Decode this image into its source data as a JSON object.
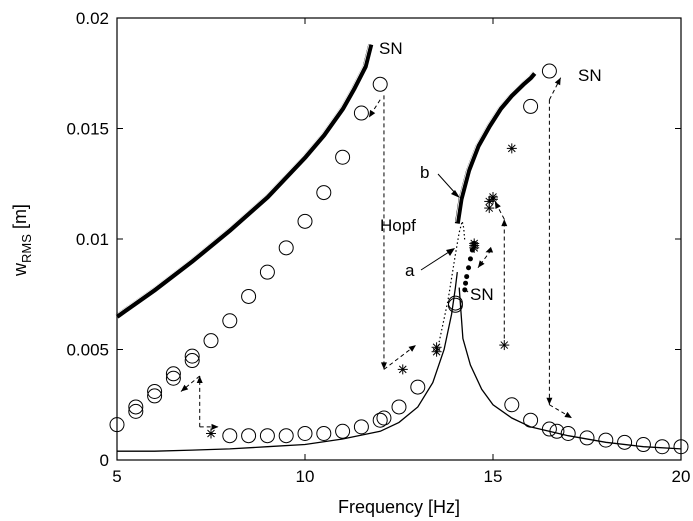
{
  "chart_data": {
    "type": "line",
    "xlabel": "Frequency [Hz]",
    "ylabel_main": "w",
    "ylabel_sub": "RMS",
    "ylabel_unit": " [m]",
    "xlim": [
      5,
      20
    ],
    "ylim": [
      0,
      0.02
    ],
    "x_ticks": [
      "5",
      "10",
      "15",
      "20"
    ],
    "y_ticks": [
      "0",
      "0.005",
      "0.01",
      "0.015",
      "0.02"
    ],
    "x_tick_values": [
      5,
      10,
      15,
      20
    ],
    "y_tick_values": [
      0,
      0.005,
      0.01,
      0.015,
      0.02
    ],
    "grid": false,
    "annotations": {
      "sn1": "SN",
      "sn2": "SN",
      "sn3": "SN",
      "hopf": "Hopf",
      "a": "a",
      "b": "b"
    },
    "series": [
      {
        "style": "thick-black",
        "x": [
          5,
          6,
          7,
          8,
          9,
          10,
          10.5,
          11,
          11.3,
          11.6,
          11.75
        ],
        "y": [
          0.0065,
          0.0077,
          0.009,
          0.0104,
          0.0119,
          0.0137,
          0.0147,
          0.0159,
          0.0168,
          0.0178,
          0.0188
        ]
      },
      {
        "style": "thick-black",
        "x": [
          14.05,
          14.15,
          14.35,
          14.6,
          14.9,
          15.2,
          15.5,
          15.8,
          16.0,
          16.1
        ],
        "y": [
          0.0107,
          0.0118,
          0.0131,
          0.0142,
          0.0151,
          0.0159,
          0.0165,
          0.017,
          0.0173,
          0.0175
        ]
      },
      {
        "style": "thin-black",
        "x": [
          5,
          6,
          7,
          8,
          9,
          10,
          11,
          12,
          12.5,
          13,
          13.4,
          13.7,
          13.9,
          14.0,
          14.05
        ],
        "y": [
          0.0004,
          0.0004,
          0.00045,
          0.0005,
          0.0006,
          0.0007,
          0.00095,
          0.0013,
          0.0017,
          0.0024,
          0.0035,
          0.005,
          0.0066,
          0.0078,
          0.0085
        ]
      },
      {
        "style": "dotted",
        "x": [
          13.5,
          13.8,
          14.0,
          14.1,
          14.18,
          14.22,
          14.25
        ],
        "y": [
          0.0048,
          0.0072,
          0.0093,
          0.0103,
          0.0108,
          0.0105,
          0.0099
        ]
      },
      {
        "style": "thin-black",
        "x": [
          14.1,
          14.2,
          14.4,
          14.7,
          15,
          15.5,
          16,
          17,
          18,
          19,
          20
        ],
        "y": [
          0.0078,
          0.0055,
          0.0043,
          0.0032,
          0.0025,
          0.0019,
          0.0015,
          0.0011,
          0.0008,
          0.0006,
          0.0005
        ]
      },
      {
        "style": "dots",
        "x": [
          14.5,
          14.45,
          14.4,
          14.35,
          14.3,
          14.27,
          14.25
        ],
        "y": [
          0.0098,
          0.0095,
          0.0091,
          0.0087,
          0.0083,
          0.008,
          0.0077
        ]
      },
      {
        "style": "circle",
        "x": [
          5,
          5.5,
          5.5,
          6,
          6,
          6.5,
          6.5,
          7,
          7,
          7.5,
          8,
          8.5,
          9,
          9.5,
          10,
          10.5,
          11,
          11.5,
          12
        ],
        "y": [
          0.0016,
          0.0024,
          0.0022,
          0.0031,
          0.0029,
          0.0039,
          0.0037,
          0.0047,
          0.0045,
          0.0054,
          0.0063,
          0.0074,
          0.0085,
          0.0096,
          0.0108,
          0.0121,
          0.0137,
          0.0157,
          0.017
        ]
      },
      {
        "style": "circle",
        "x": [
          8,
          8.5,
          9,
          9.5,
          10,
          10.5,
          11,
          11.5,
          12,
          12.1,
          12.5,
          13,
          14,
          14
        ],
        "y": [
          0.0011,
          0.0011,
          0.0011,
          0.0011,
          0.0012,
          0.0012,
          0.0013,
          0.0015,
          0.0018,
          0.0019,
          0.0024,
          0.0033,
          0.007,
          0.0071
        ]
      },
      {
        "style": "circle",
        "x": [
          15.5,
          16,
          16.5,
          16.7,
          17,
          17.5,
          18,
          18.5,
          19,
          19.5,
          20,
          16,
          16.5
        ],
        "y": [
          0.0025,
          0.0018,
          0.0014,
          0.0013,
          0.0012,
          0.001,
          0.0009,
          0.0008,
          0.0007,
          0.0006,
          0.0006,
          0.016,
          0.0176
        ]
      },
      {
        "style": "star",
        "x": [
          7.5,
          12.6,
          13.5,
          13.5,
          14.5,
          14.5,
          14.5,
          14.9,
          14.9,
          15,
          15,
          15.3,
          15.5
        ],
        "y": [
          0.0012,
          0.0041,
          0.0049,
          0.0051,
          0.0096,
          0.0097,
          0.0098,
          0.0114,
          0.0117,
          0.0119,
          0.0118,
          0.0052,
          0.0141
        ]
      }
    ],
    "jump_arrows": [
      {
        "from": [
          12,
          0.0163
        ],
        "to": [
          11.7,
          0.0155
        ],
        "dash": true
      },
      {
        "from": [
          12.1,
          0.0165
        ],
        "to": [
          12.1,
          0.0041
        ],
        "dash": true
      },
      {
        "from": [
          12.1,
          0.0041
        ],
        "to": [
          12.95,
          0.0052
        ],
        "dash": true
      },
      {
        "from": [
          7.2,
          0.0015
        ],
        "to": [
          7.7,
          0.0015
        ],
        "dash": true
      },
      {
        "from": [
          7.2,
          0.0015
        ],
        "to": [
          7.2,
          0.0038
        ],
        "dash": true
      },
      {
        "from": [
          7.2,
          0.0038
        ],
        "to": [
          6.7,
          0.0031
        ],
        "dash": true
      },
      {
        "from": [
          15.3,
          0.0055
        ],
        "to": [
          15.3,
          0.0109
        ],
        "dash": true
      },
      {
        "from": [
          15.3,
          0.0109
        ],
        "to": [
          15.05,
          0.0117
        ],
        "dash": true
      },
      {
        "from": [
          14.95,
          0.0095
        ],
        "to": [
          14.6,
          0.0087
        ],
        "dash": true
      },
      {
        "from": [
          14.95,
          0.0095
        ],
        "to": [
          14.8,
          0.0094
        ],
        "dash": true
      },
      {
        "from": [
          16.5,
          0.0163
        ],
        "to": [
          16.8,
          0.0173
        ],
        "dash": true
      },
      {
        "from": [
          16.5,
          0.0163
        ],
        "to": [
          16.5,
          0.0025
        ],
        "dash": true
      },
      {
        "from": [
          16.5,
          0.0025
        ],
        "to": [
          17.1,
          0.0019
        ],
        "dash": true
      }
    ]
  }
}
